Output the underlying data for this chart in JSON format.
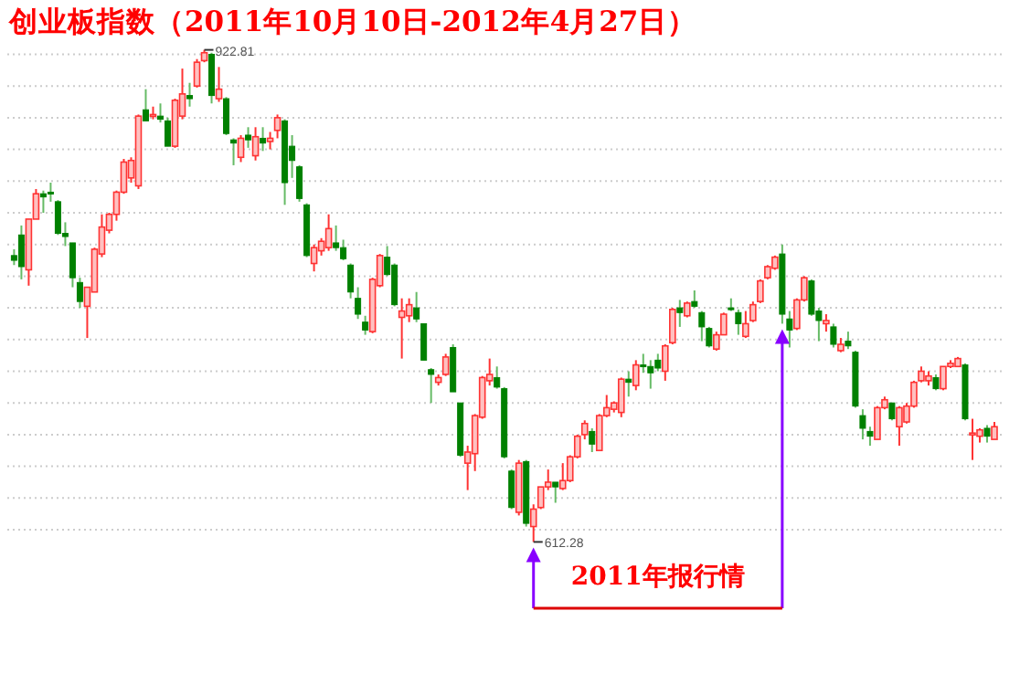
{
  "chart_data": {
    "type": "candlestick",
    "title": "创业板指数（2011年10月10日-2012年4月27日）",
    "categories": [
      null,
      null,
      null,
      null,
      null,
      null,
      null,
      null,
      null,
      null,
      null,
      null,
      null,
      null,
      null,
      null,
      null,
      null,
      null,
      null,
      null,
      null,
      null,
      null,
      null,
      null,
      null,
      null,
      null,
      null,
      null,
      null,
      null,
      null,
      null,
      null,
      null,
      null,
      null,
      null,
      null,
      null,
      null,
      null,
      null,
      null,
      null,
      null,
      null,
      null,
      null,
      null,
      null,
      null,
      null,
      null,
      null,
      null,
      null,
      null,
      null,
      null,
      null,
      null,
      null,
      null,
      null,
      null,
      null,
      null,
      null,
      null,
      null,
      null,
      null,
      null,
      null,
      null,
      null,
      null,
      null,
      null,
      null,
      null,
      null,
      null,
      null,
      null,
      null,
      null,
      null,
      null,
      null,
      null,
      null,
      null,
      null,
      null,
      null,
      null,
      null,
      null,
      null,
      null,
      null,
      null,
      null,
      null,
      null,
      null,
      null,
      null,
      null,
      null,
      null,
      null,
      null,
      null,
      null,
      null,
      null,
      null,
      null,
      null,
      null,
      null,
      null,
      null,
      null,
      null,
      null,
      null,
      null,
      null,
      null
    ],
    "ohlc": [
      [
        793,
        797,
        787,
        790
      ],
      [
        806,
        812,
        778,
        786
      ],
      [
        784,
        816,
        774,
        816
      ],
      [
        816,
        835,
        816,
        832
      ],
      [
        832,
        834,
        820,
        830
      ],
      [
        833,
        839,
        827,
        832
      ],
      [
        827,
        828,
        806,
        807
      ],
      [
        807,
        814,
        799,
        805
      ],
      [
        801,
        801,
        773,
        779
      ],
      [
        776,
        779,
        760,
        764
      ],
      [
        761,
        773,
        741,
        773
      ],
      [
        770,
        798,
        770,
        797
      ],
      [
        794,
        819,
        792,
        811
      ],
      [
        809,
        820,
        807,
        819
      ],
      [
        819,
        834,
        815,
        833
      ],
      [
        833,
        854,
        832,
        852
      ],
      [
        842,
        855,
        839,
        853
      ],
      [
        837,
        882,
        835,
        881
      ],
      [
        885,
        898,
        878,
        878
      ],
      [
        881,
        887,
        879,
        882
      ],
      [
        881,
        889,
        877,
        879
      ],
      [
        878,
        880,
        862,
        862
      ],
      [
        862,
        892,
        861,
        891
      ],
      [
        881,
        911,
        879,
        895
      ],
      [
        894,
        902,
        887,
        892
      ],
      [
        900,
        917,
        899,
        915
      ],
      [
        916,
        922.81,
        915,
        921
      ],
      [
        920,
        921,
        889,
        894
      ],
      [
        892,
        912,
        890,
        898
      ],
      [
        892,
        893,
        869,
        870
      ],
      [
        866,
        867,
        850,
        864
      ],
      [
        855,
        869,
        852,
        867
      ],
      [
        869,
        874,
        861,
        866
      ],
      [
        856,
        874,
        853,
        868
      ],
      [
        867,
        874,
        859,
        864
      ],
      [
        865,
        871,
        860,
        867
      ],
      [
        872,
        882,
        867,
        880
      ],
      [
        878,
        879,
        825,
        839
      ],
      [
        862,
        869,
        842,
        853
      ],
      [
        849,
        850,
        827,
        829
      ],
      [
        825,
        826,
        792,
        793
      ],
      [
        788,
        800,
        783,
        798
      ],
      [
        796,
        804,
        793,
        802
      ],
      [
        798,
        819,
        796,
        810
      ],
      [
        801,
        812,
        796,
        798
      ],
      [
        798,
        803,
        790,
        791
      ],
      [
        787,
        788,
        766,
        770
      ],
      [
        766,
        773,
        753,
        756
      ],
      [
        751,
        755,
        743,
        746
      ],
      [
        745,
        779,
        744,
        778
      ],
      [
        774,
        794,
        773,
        793
      ],
      [
        792,
        799,
        780,
        781
      ],
      [
        787,
        788,
        761,
        762
      ],
      [
        754,
        766,
        728,
        758
      ],
      [
        755,
        766,
        751,
        762
      ],
      [
        760,
        770,
        751,
        753
      ],
      [
        750,
        750,
        727,
        727
      ],
      [
        721,
        722,
        700,
        718
      ],
      [
        713,
        718,
        711,
        716
      ],
      [
        718,
        731,
        717,
        729
      ],
      [
        735,
        737,
        707,
        707
      ],
      [
        700,
        700,
        666,
        667
      ],
      [
        662,
        673,
        645,
        669
      ],
      [
        668,
        693,
        657,
        692
      ],
      [
        691,
        717,
        690,
        716
      ],
      [
        714,
        728,
        711,
        718
      ],
      [
        716,
        723,
        709,
        710
      ],
      [
        709,
        710,
        665,
        666
      ],
      [
        657,
        658,
        633,
        634
      ],
      [
        631,
        664,
        629,
        662
      ],
      [
        663,
        664,
        622,
        624
      ],
      [
        622,
        636,
        612.28,
        633
      ],
      [
        634,
        647,
        633,
        647
      ],
      [
        647,
        658,
        645,
        650
      ],
      [
        650,
        650,
        637,
        647
      ],
      [
        646,
        662,
        645,
        651
      ],
      [
        651,
        667,
        650,
        666
      ],
      [
        666,
        680,
        665,
        679
      ],
      [
        680,
        689,
        677,
        687
      ],
      [
        682,
        684,
        669,
        674
      ],
      [
        670,
        693,
        670,
        692
      ],
      [
        692,
        705,
        691,
        697
      ],
      [
        696,
        701,
        694,
        700
      ],
      [
        694,
        716,
        691,
        715
      ],
      [
        715,
        720,
        704,
        713
      ],
      [
        711,
        727,
        708,
        724
      ],
      [
        724,
        731,
        719,
        723
      ],
      [
        723,
        727,
        709,
        719
      ],
      [
        727,
        731,
        720,
        722
      ],
      [
        720,
        737,
        714,
        736
      ],
      [
        738,
        760,
        737,
        759
      ],
      [
        760,
        765,
        748,
        757
      ],
      [
        755,
        764,
        754,
        763
      ],
      [
        764,
        771,
        760,
        761
      ],
      [
        757,
        758,
        739,
        748
      ],
      [
        747,
        748,
        735,
        736
      ],
      [
        734,
        745,
        733,
        743
      ],
      [
        743,
        757,
        743,
        756
      ],
      [
        760,
        766,
        758,
        759
      ],
      [
        757,
        759,
        743,
        750
      ],
      [
        742,
        758,
        741,
        750
      ],
      [
        752,
        764,
        751,
        762
      ],
      [
        764,
        778,
        763,
        777
      ],
      [
        779,
        787,
        778,
        786
      ],
      [
        785,
        793,
        784,
        792
      ],
      [
        794,
        800,
        750,
        756
      ],
      [
        753,
        758,
        735,
        746
      ],
      [
        747,
        766,
        746,
        765
      ],
      [
        765,
        780,
        764,
        779
      ],
      [
        777,
        778,
        755,
        756
      ],
      [
        758,
        760,
        739,
        752
      ],
      [
        750,
        756,
        745,
        752
      ],
      [
        748,
        750,
        735,
        737
      ],
      [
        733,
        741,
        732,
        737
      ],
      [
        739,
        745,
        734,
        736
      ],
      [
        732,
        733,
        697,
        698
      ],
      [
        692,
        696,
        677,
        684
      ],
      [
        682,
        685,
        673,
        679
      ],
      [
        677,
        698,
        677,
        697
      ],
      [
        697,
        704,
        696,
        702
      ],
      [
        700,
        700,
        689,
        690
      ],
      [
        685,
        698,
        673,
        697
      ],
      [
        688,
        700,
        687,
        698
      ],
      [
        698,
        714,
        697,
        713
      ],
      [
        714,
        723,
        713,
        720
      ],
      [
        714,
        720,
        711,
        717
      ],
      [
        716,
        718,
        708,
        709
      ],
      [
        709,
        723,
        708,
        723
      ],
      [
        723,
        727,
        722,
        725
      ],
      [
        723,
        729,
        723,
        728
      ],
      [
        724,
        725,
        689,
        690
      ],
      [
        680,
        690,
        664,
        681
      ],
      [
        679,
        684,
        675,
        683
      ],
      [
        684,
        686,
        675,
        679
      ],
      [
        677,
        688,
        677,
        685
      ]
    ],
    "yticks": [
      {
        "value": 620,
        "label": null
      },
      {
        "value": 640,
        "label": null
      },
      {
        "value": 660,
        "label": null
      },
      {
        "value": 680,
        "label": null
      },
      {
        "value": 700,
        "label": null
      },
      {
        "value": 720,
        "label": null
      },
      {
        "value": 740,
        "label": null
      },
      {
        "value": 760,
        "label": null
      },
      {
        "value": 780,
        "label": null
      },
      {
        "value": 800,
        "label": null
      },
      {
        "value": 820,
        "label": null
      },
      {
        "value": 840,
        "label": null
      },
      {
        "value": 860,
        "label": null
      },
      {
        "value": 880,
        "label": null
      },
      {
        "value": 900,
        "label": null
      },
      {
        "value": 920,
        "label": null
      }
    ],
    "grid": "y",
    "tick_labels": false,
    "annotations": [
      "922.81",
      "612.28",
      "2011年报行情"
    ]
  }
}
